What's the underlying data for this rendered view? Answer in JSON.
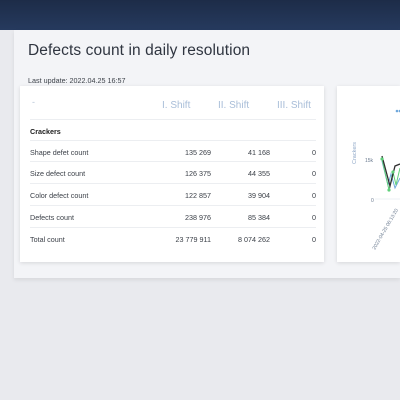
{
  "page": {
    "title": "Defects count in daily resolution",
    "last_update": "Last update: 2022.04.25 16:57"
  },
  "table": {
    "columns": [
      "-",
      "I. Shift",
      "II. Shift",
      "III. Shift"
    ],
    "category": "Crackers",
    "rows": [
      {
        "label": "Shape defet count",
        "values": [
          "135 269",
          "41 168",
          "0"
        ]
      },
      {
        "label": "Size defect count",
        "values": [
          "126 375",
          "44 355",
          "0"
        ]
      },
      {
        "label": "Color defect count",
        "values": [
          "122 857",
          "39 904",
          "0"
        ]
      },
      {
        "label": "Defects count",
        "values": [
          "238 976",
          "85 384",
          "0"
        ]
      },
      {
        "label": "Total count",
        "values": [
          "23 779 911",
          "8 074 262",
          "0"
        ]
      }
    ]
  },
  "chart_data": {
    "type": "line",
    "ylabel": "Crackers",
    "yticks": [
      "15k",
      "0"
    ],
    "xticks": [
      "2022-04-25 06:13:20"
    ],
    "series": [
      {
        "color": "#2f2f2f"
      },
      {
        "color": "#5fd07a"
      },
      {
        "color": "#6fa8dc"
      }
    ]
  },
  "colors": {
    "header": "#1d2c48",
    "column_header_text": "#a8bdd8"
  }
}
